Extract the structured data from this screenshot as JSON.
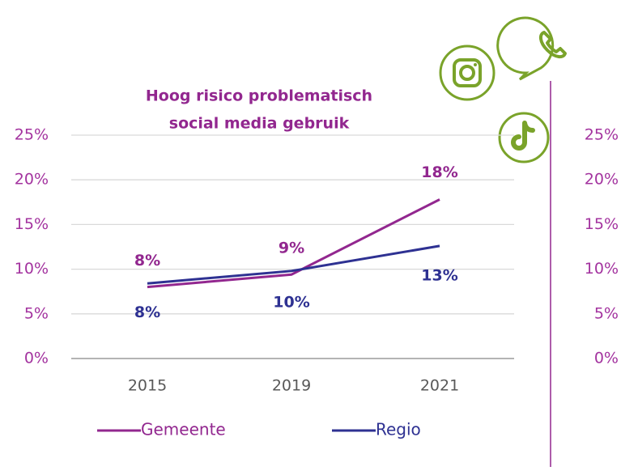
{
  "chart_data": {
    "type": "line",
    "title": [
      "Hoog risico problematisch",
      "social media gebruik"
    ],
    "categories": [
      "2015",
      "2019",
      "2021"
    ],
    "series": [
      {
        "name": "Gemeente",
        "color": "#92278f",
        "values": [
          8,
          9.4,
          17.8
        ],
        "value_labels": [
          "8%",
          "9%",
          "18%"
        ]
      },
      {
        "name": "Regio",
        "color": "#2e3192",
        "values": [
          8.4,
          9.8,
          12.6
        ],
        "value_labels": [
          "8%",
          "10%",
          "13%"
        ]
      }
    ],
    "ylim": [
      0,
      25
    ],
    "yticks": [
      {
        "value": 0,
        "label": "0%"
      },
      {
        "value": 5,
        "label": "5%"
      },
      {
        "value": 10,
        "label": "10%"
      },
      {
        "value": 15,
        "label": "15%"
      },
      {
        "value": 20,
        "label": "20%"
      },
      {
        "value": 25,
        "label": "25%"
      }
    ],
    "y2lim": [
      0,
      25
    ],
    "y2ticks": [
      {
        "value": 0,
        "label": "0%"
      },
      {
        "value": 5,
        "label": "5%"
      },
      {
        "value": 10,
        "label": "10%"
      },
      {
        "value": 15,
        "label": "15%"
      },
      {
        "value": 20,
        "label": "20%"
      },
      {
        "value": 25,
        "label": "25%"
      }
    ],
    "grid": true,
    "legend": "bottom"
  }
}
